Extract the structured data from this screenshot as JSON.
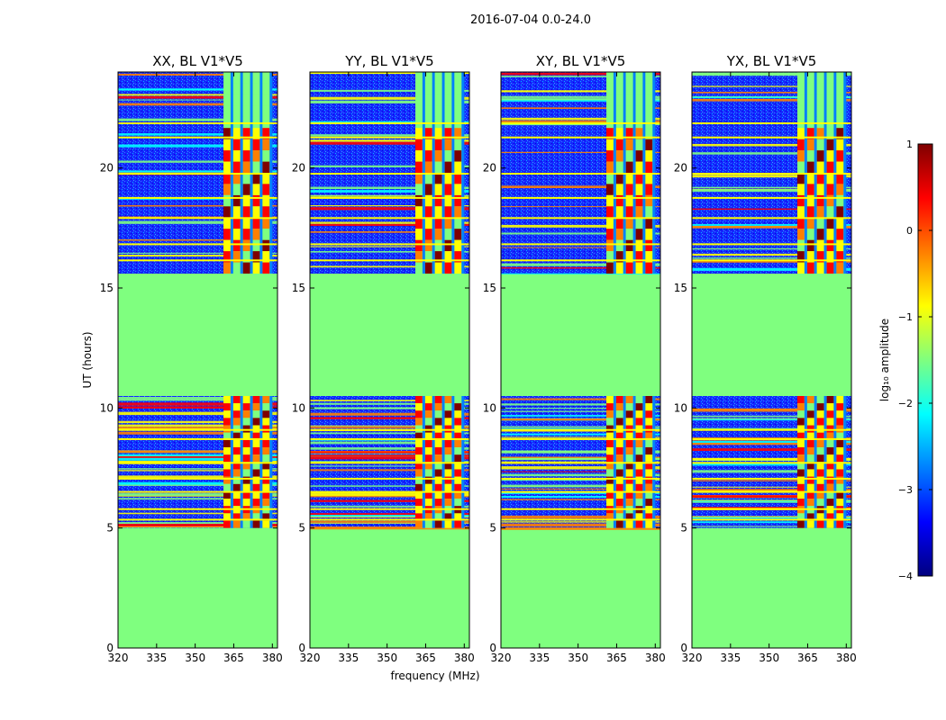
{
  "figure": {
    "suptitle": "2016-07-04 0.0-24.0",
    "xlabel": "frequency (MHz)",
    "ylabel": "UT (hours)"
  },
  "chart_data": {
    "type": "heatmap",
    "x_range": [
      320,
      382
    ],
    "y_range": [
      0,
      24
    ],
    "x_ticks": [
      320,
      335,
      350,
      365,
      380
    ],
    "y_ticks": [
      0,
      5,
      10,
      15,
      20
    ],
    "panels": [
      {
        "title": "XX, BL V1*V5"
      },
      {
        "title": "YY, BL V1*V5"
      },
      {
        "title": "XY, BL V1*V5"
      },
      {
        "title": "YX, BL V1*V5"
      }
    ],
    "data_blocks": [
      {
        "t_start": 5.0,
        "t_end": 10.5
      },
      {
        "t_start": 15.6,
        "t_end": 24.0
      }
    ],
    "no_data_value": -1.3,
    "rfi_band_mhz": [
      361,
      380
    ],
    "colorbar": {
      "label": "log₁₀ amplitude",
      "range": [
        -4,
        1
      ],
      "ticks": [
        {
          "v": 1,
          "label": "1"
        },
        {
          "v": 0,
          "label": "0"
        },
        {
          "v": -1,
          "label": "−1"
        },
        {
          "v": -2,
          "label": "−2"
        },
        {
          "v": -3,
          "label": "−3"
        },
        {
          "v": -4,
          "label": "−4"
        }
      ],
      "colors": [
        "#00007f",
        "#0000ff",
        "#007fff",
        "#00ffff",
        "#7fff7f",
        "#ffff00",
        "#ff7f00",
        "#ff0000",
        "#7f0000"
      ]
    }
  }
}
